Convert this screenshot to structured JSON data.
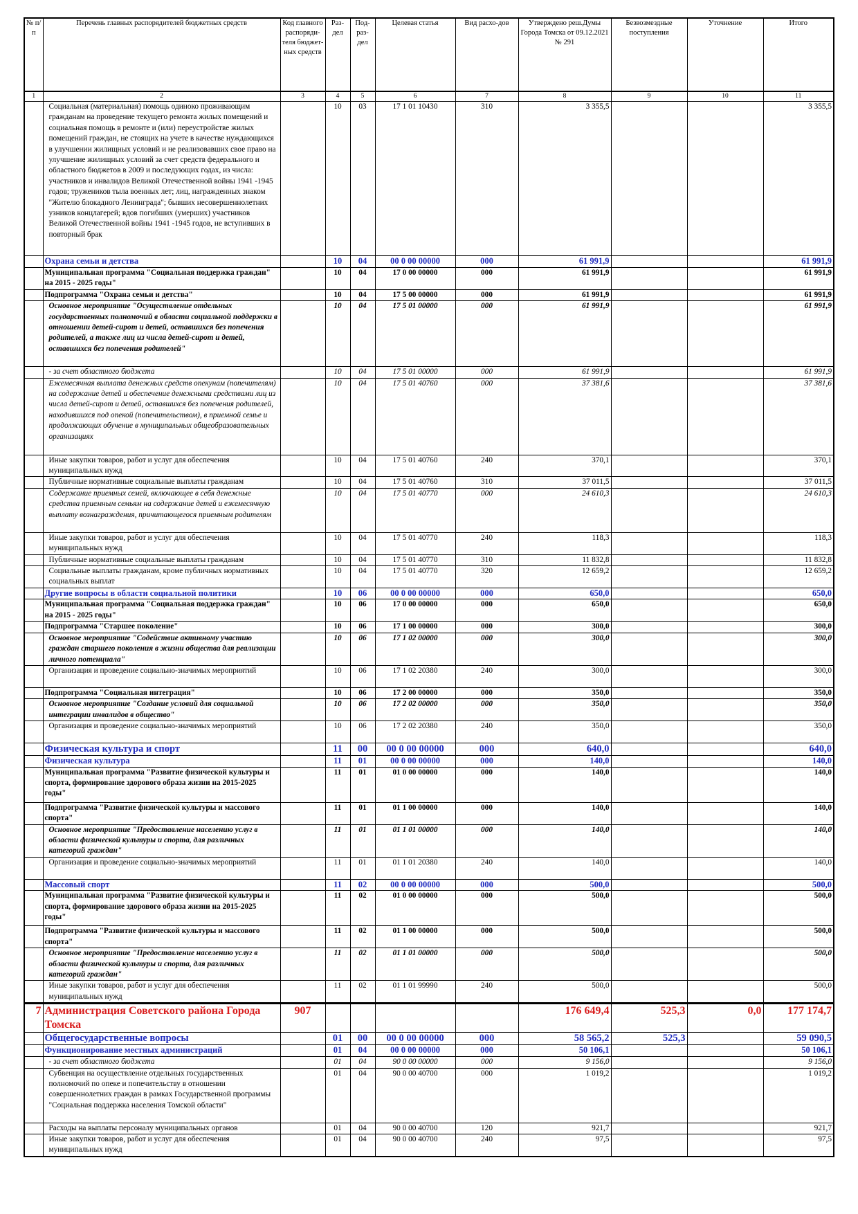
{
  "table": {
    "headers": [
      "№ п/п",
      "Перечень главных распорядителей бюджетных средств",
      "Код главного распоряди-теля бюджет-ных средств",
      "Раз-дел",
      "Под-раз-дел",
      "Целевая статья",
      "Вид расхо-дов",
      "Утверждено реш.Думы Города Томска от 09.12.2021 № 291",
      "Безвозмездные поступления",
      "Уточнение",
      "Итого"
    ],
    "column_numbers": [
      "1",
      "2",
      "3",
      "4",
      "5",
      "6",
      "7",
      "8",
      "9",
      "10",
      "11"
    ],
    "rows": [
      {
        "name": "Социальная (материальная) помощь одиноко проживающим гражданам на проведение текущего ремонта жилых помещений и социальная помощь в ремонте и (или) переустройстве жилых помещений граждан, не стоящих на учете в качестве нуждающихся в улучшении жилищных условий и не реализовавших свое право на улучшение жилищных условий за счет средств федерального и областного бюджетов в 2009 и последующих годах, из числа: участников и инвалидов Великой Отечественной войны 1941 -1945 годов; тружеников тыла военных лет; лиц, награжденных знаком \"Жителю блокадного Ленинграда\"; бывших несовершеннолетних узников концлагерей; вдов погибших (умерших) участников Великой Отечественной войны 1941 -1945 годов, не вступивших в повторный брак",
        "section": "10",
        "subsection": "03",
        "target": "17 1 01 10430",
        "type": "310",
        "approved": "3 355,5",
        "total": "3 355,5"
      },
      {
        "name": "Охрана семьи и детства",
        "section": "10",
        "subsection": "04",
        "target": "00 0 00 00000",
        "type": "000",
        "approved": "61 991,9",
        "total": "61 991,9"
      },
      {
        "name": "Муниципальная программа \"Социальная поддержка граждан\" на 2015 - 2025 годы\"",
        "section": "10",
        "subsection": "04",
        "target": "17 0 00 00000",
        "type": "000",
        "approved": "61 991,9",
        "total": "61 991,9"
      },
      {
        "name": "Подпрограмма \"Охрана семьи и детства\"",
        "section": "10",
        "subsection": "04",
        "target": "17 5 00 00000",
        "type": "000",
        "approved": "61 991,9",
        "total": "61 991,9"
      },
      {
        "name": "Основное мероприятие \"Осуществление отдельных государственных полномочий в области социальной поддержки в отношении детей-сирот и детей, оставшихся без попечения родителей, а также лиц из числа детей-сирот и детей, оставшихся без попечения родителей\"",
        "section": "10",
        "subsection": "04",
        "target": "17 5 01 00000",
        "type": "000",
        "approved": "61 991,9",
        "total": "61 991,9"
      },
      {
        "name": "- за счет областного бюджета",
        "section": "10",
        "subsection": "04",
        "target": "17 5 01 00000",
        "type": "000",
        "approved": "61 991,9",
        "total": "61 991,9"
      },
      {
        "name": "Ежемесячная выплата денежных средств опекунам (попечителям) на содержание детей и обеспечение денежными средствами лиц из числа детей-сирот и детей, оставшихся без попечения родителей, находившихся под опекой (попечительством), в приемной семье и продолжающих обучение в муниципальных общеобразовательных организациях",
        "section": "10",
        "subsection": "04",
        "target": "17 5 01 40760",
        "type": "000",
        "approved": "37 381,6",
        "total": "37 381,6"
      },
      {
        "name": "Иные закупки товаров, работ и услуг для обеспечения муниципальных нужд",
        "section": "10",
        "subsection": "04",
        "target": "17 5 01 40760",
        "type": "240",
        "approved": "370,1",
        "total": "370,1"
      },
      {
        "name": "Публичные нормативные социальные выплаты гражданам",
        "section": "10",
        "subsection": "04",
        "target": "17 5 01 40760",
        "type": "310",
        "approved": "37 011,5",
        "total": "37 011,5"
      },
      {
        "name": "Содержание приемных семей, включающее в себя денежные средства приемным семьям на содержание детей и ежемесячную выплату вознаграждения, причитающегося приемным родителям",
        "section": "10",
        "subsection": "04",
        "target": "17 5 01 40770",
        "type": "000",
        "approved": "24 610,3",
        "total": "24 610,3"
      },
      {
        "name": "Иные закупки товаров, работ и услуг для обеспечения муниципальных нужд",
        "section": "10",
        "subsection": "04",
        "target": "17 5 01 40770",
        "type": "240",
        "approved": "118,3",
        "total": "118,3"
      },
      {
        "name": "Публичные нормативные социальные выплаты гражданам",
        "section": "10",
        "subsection": "04",
        "target": "17 5 01 40770",
        "type": "310",
        "approved": "11 832,8",
        "total": "11 832,8"
      },
      {
        "name": "Социальные выплаты гражданам, кроме публичных нормативных социальных выплат",
        "section": "10",
        "subsection": "04",
        "target": "17 5 01 40770",
        "type": "320",
        "approved": "12 659,2",
        "total": "12 659,2"
      },
      {
        "name": "Другие вопросы в области социальной политики",
        "section": "10",
        "subsection": "06",
        "target": "00 0 00 00000",
        "type": "000",
        "approved": "650,0",
        "total": "650,0"
      },
      {
        "name": "Муниципальная программа \"Социальная поддержка граждан\" на 2015 - 2025 годы\"",
        "section": "10",
        "subsection": "06",
        "target": "17 0 00 00000",
        "type": "000",
        "approved": "650,0",
        "total": "650,0"
      },
      {
        "name": "Подпрограмма \"Старшее поколение\"",
        "section": "10",
        "subsection": "06",
        "target": "17 1 00 00000",
        "type": "000",
        "approved": "300,0",
        "total": "300,0"
      },
      {
        "name": "Основное мероприятие \"Содействие активному участию граждан старшего поколения в жизни общества для реализации личного потенциала\"",
        "section": "10",
        "subsection": "06",
        "target": "17 1 02 00000",
        "type": "000",
        "approved": "300,0",
        "total": "300,0"
      },
      {
        "name": "Организация и проведение социально-значимых мероприятий",
        "section": "10",
        "subsection": "06",
        "target": "17 1 02 20380",
        "type": "240",
        "approved": "300,0",
        "total": "300,0"
      },
      {
        "name": "Подпрограмма \"Социальная интеграция\"",
        "section": "10",
        "subsection": "06",
        "target": "17 2 00 00000",
        "type": "000",
        "approved": "350,0",
        "total": "350,0"
      },
      {
        "name": "Основное мероприятие \"Создание условий для социальной интеграции инвалидов в общество\"",
        "section": "10",
        "subsection": "06",
        "target": "17 2 02 00000",
        "type": "000",
        "approved": "350,0",
        "total": "350,0"
      },
      {
        "name": "Организация и проведение социально-значимых мероприятий",
        "section": "10",
        "subsection": "06",
        "target": "17 2 02 20380",
        "type": "240",
        "approved": "350,0",
        "total": "350,0"
      },
      {
        "name": "Физическая культура и спорт",
        "section": "11",
        "subsection": "00",
        "target": "00 0 00 00000",
        "type": "000",
        "approved": "640,0",
        "total": "640,0"
      },
      {
        "name": "Физическая культура",
        "section": "11",
        "subsection": "01",
        "target": "00 0 00 00000",
        "type": "000",
        "approved": "140,0",
        "total": "140,0"
      },
      {
        "name": "Муниципальная программа \"Развитие физической культуры и спорта, формирование здорового образа жизни на 2015-2025 годы\"",
        "section": "11",
        "subsection": "01",
        "target": "01 0 00 00000",
        "type": "000",
        "approved": "140,0",
        "total": "140,0"
      },
      {
        "name": "Подпрограмма \"Развитие физической культуры и массового спорта\"",
        "section": "11",
        "subsection": "01",
        "target": "01 1 00 00000",
        "type": "000",
        "approved": "140,0",
        "total": "140,0"
      },
      {
        "name": "Основное мероприятие \"Предоставление населению услуг в области физической культуры и спорта, для различных категорий граждан\"",
        "section": "11",
        "subsection": "01",
        "target": "01 1 01 00000",
        "type": "000",
        "approved": "140,0",
        "total": "140,0"
      },
      {
        "name": "Организация и проведение социально-значимых мероприятий",
        "section": "11",
        "subsection": "01",
        "target": "01 1 01 20380",
        "type": "240",
        "approved": "140,0",
        "total": "140,0"
      },
      {
        "name": "Массовый спорт",
        "section": "11",
        "subsection": "02",
        "target": "00 0 00 00000",
        "type": "000",
        "approved": "500,0",
        "total": "500,0"
      },
      {
        "name": "Муниципальная программа \"Развитие физической культуры и спорта, формирование здорового образа жизни на 2015-2025 годы\"",
        "section": "11",
        "subsection": "02",
        "target": "01 0 00 00000",
        "type": "000",
        "approved": "500,0",
        "total": "500,0"
      },
      {
        "name": "Подпрограмма \"Развитие физической культуры и массового спорта\"",
        "section": "11",
        "subsection": "02",
        "target": "01 1 00 00000",
        "type": "000",
        "approved": "500,0",
        "total": "500,0"
      },
      {
        "name": "Основное мероприятие \"Предоставление населению услуг в области физической культуры и спорта, для различных категорий граждан\"",
        "section": "11",
        "subsection": "02",
        "target": "01 1 01 00000",
        "type": "000",
        "approved": "500,0",
        "total": "500,0"
      },
      {
        "name": "Иные закупки товаров, работ и услуг для обеспечения муниципальных нужд",
        "section": "11",
        "subsection": "02",
        "target": "01 1 01 99990",
        "type": "240",
        "approved": "500,0",
        "total": "500,0"
      },
      {
        "num": "7",
        "name": "Администрация Советского района Города Томска",
        "code": "907",
        "approved": "176 649,4",
        "gratuitous": "525,3",
        "refinement": "0,0",
        "total": "177 174,7"
      },
      {
        "name": "Общегосударственные вопросы",
        "section": "01",
        "subsection": "00",
        "target": "00 0 00 00000",
        "type": "000",
        "approved": "58 565,2",
        "gratuitous": "525,3",
        "total": "59 090,5"
      },
      {
        "name": "Функционирование местных администраций",
        "section": "01",
        "subsection": "04",
        "target": "00 0 00 00000",
        "type": "000",
        "approved": "50 106,1",
        "total": "50 106,1"
      },
      {
        "name": "- за счет областного бюджета",
        "section": "01",
        "subsection": "04",
        "target": "90 0 00 00000",
        "type": "000",
        "approved": "9 156,0",
        "total": "9 156,0"
      },
      {
        "name": "Субвенция на осуществление отдельных государственных полномочий по опеке и попечительству в отношении совершеннолетних граждан в рамках Государственной программы \"Социальная поддержка населения Томской области\"",
        "section": "01",
        "subsection": "04",
        "target": "90 0 00 40700",
        "type": "000",
        "approved": "1 019,2",
        "total": "1 019,2"
      },
      {
        "name": "Расходы на выплаты персоналу муниципальных органов",
        "section": "01",
        "subsection": "04",
        "target": "90 0 00 40700",
        "type": "120",
        "approved": "921,7",
        "total": "921,7"
      },
      {
        "name": "Иные закупки товаров, работ и услуг для обеспечения муниципальных нужд",
        "section": "01",
        "subsection": "04",
        "target": "90 0 00 40700",
        "type": "240",
        "approved": "97,5",
        "total": "97,5"
      }
    ]
  }
}
